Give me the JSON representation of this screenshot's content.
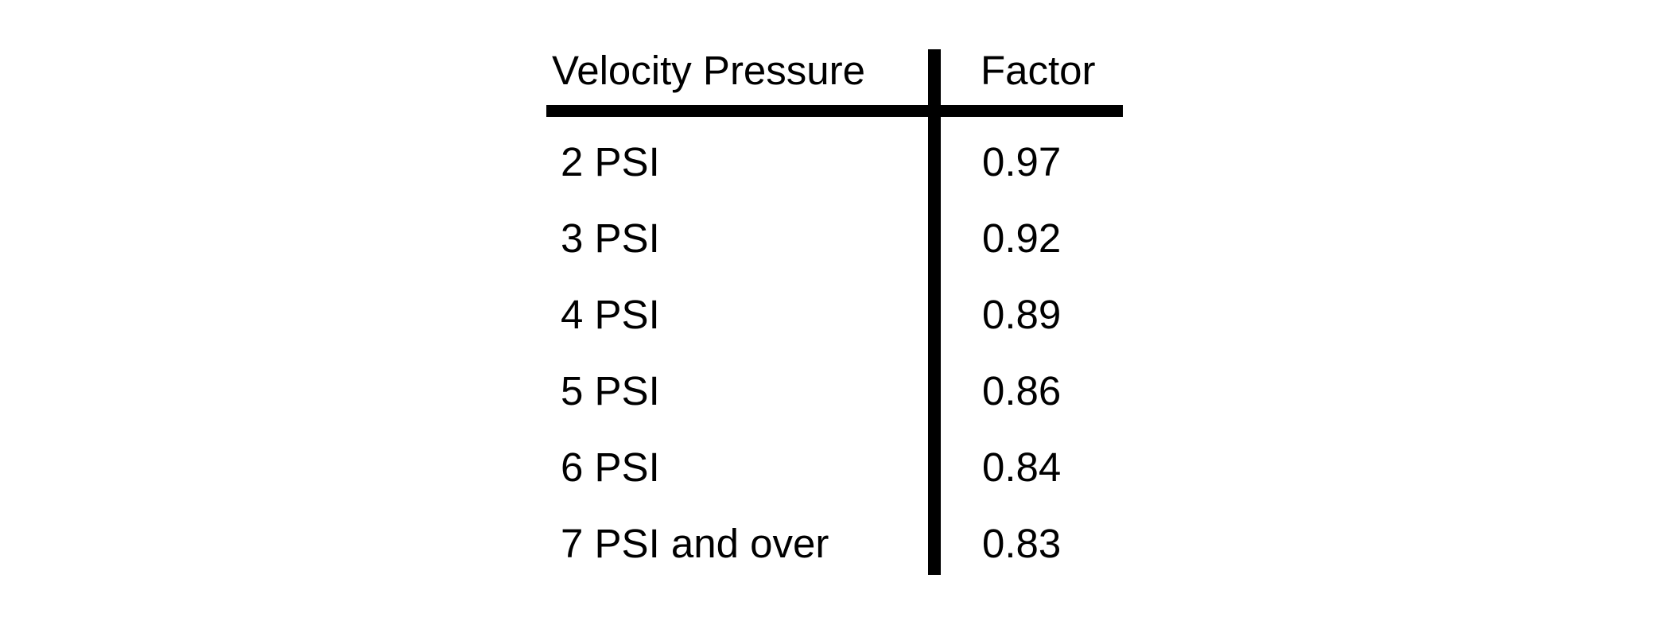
{
  "chart_data": {
    "type": "table",
    "title": "",
    "columns": [
      "Velocity Pressure",
      "Factor"
    ],
    "rows": [
      {
        "velocity_pressure": "2 PSI",
        "factor": "0.97"
      },
      {
        "velocity_pressure": "3 PSI",
        "factor": "0.92"
      },
      {
        "velocity_pressure": "4 PSI",
        "factor": "0.89"
      },
      {
        "velocity_pressure": "5 PSI",
        "factor": "0.86"
      },
      {
        "velocity_pressure": "6 PSI",
        "factor": "0.84"
      },
      {
        "velocity_pressure": "7 PSI and over",
        "factor": "0.83"
      }
    ],
    "layout": {
      "header_divider": "thick horizontal black rule below header",
      "column_divider": "thick vertical black rule between columns",
      "grid": "off"
    }
  },
  "colors": {
    "background": "#ffffff",
    "text": "#000000",
    "rule": "#000000"
  }
}
